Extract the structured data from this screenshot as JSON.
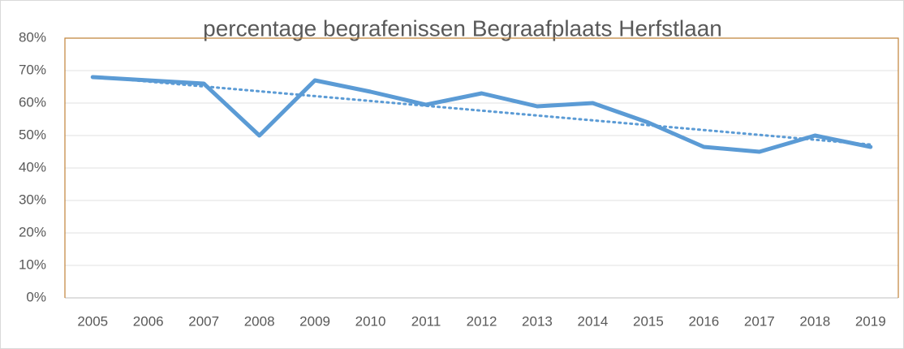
{
  "chart_data": {
    "type": "line",
    "title": "percentage begrafenissen Begraafplaats Herfstlaan",
    "categories": [
      "2005",
      "2006",
      "2007",
      "2008",
      "2009",
      "2010",
      "2011",
      "2012",
      "2013",
      "2014",
      "2015",
      "2016",
      "2017",
      "2018",
      "2019"
    ],
    "series": [
      {
        "color": "#5b9bd5",
        "values": [
          68,
          67,
          66,
          50,
          67,
          63.5,
          59.5,
          63,
          59,
          60,
          54,
          46.5,
          45,
          50,
          46.5
        ]
      }
    ],
    "trendline": "linear",
    "ylim": [
      0,
      80
    ],
    "yticks": [
      {
        "value": 0,
        "label": "0%"
      },
      {
        "value": 10,
        "label": "10%"
      },
      {
        "value": 20,
        "label": "20%"
      },
      {
        "value": 30,
        "label": "30%"
      },
      {
        "value": 40,
        "label": "40%"
      },
      {
        "value": 50,
        "label": "50%"
      },
      {
        "value": 60,
        "label": "60%"
      },
      {
        "value": 70,
        "label": "70%"
      },
      {
        "value": 80,
        "label": "80%"
      }
    ],
    "grid": true
  }
}
